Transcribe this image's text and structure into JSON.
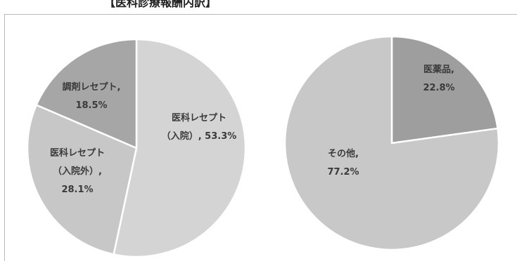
{
  "header": {
    "title": "【医科診療報酬内訳】"
  },
  "chart_data": [
    {
      "type": "pie",
      "slices": [
        {
          "label_lines": [
            "医科レセプト",
            "（入院）, 53.3%"
          ],
          "value": 53.3,
          "color": "#d4d4d4"
        },
        {
          "label_lines": [
            "医科レセプト",
            "（入院外）,",
            "28.1%"
          ],
          "value": 28.1,
          "color": "#c7c7c7"
        },
        {
          "label_lines": [
            "調剤レセプト,",
            "18.5%"
          ],
          "value": 18.5,
          "color": "#a6a6a6"
        }
      ]
    },
    {
      "type": "pie",
      "slices": [
        {
          "label_lines": [
            "医薬品,",
            "22.8%"
          ],
          "value": 22.8,
          "color": "#9e9e9e"
        },
        {
          "label_lines": [
            "その他,",
            "77.2%"
          ],
          "value": 77.2,
          "color": "#c8c8c8"
        }
      ]
    }
  ]
}
